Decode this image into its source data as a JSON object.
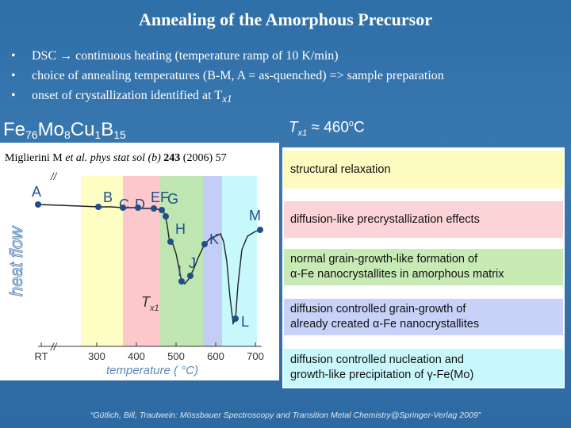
{
  "title": "Annealing of the Amorphous Precursor",
  "bullets": [
    {
      "text": "DSC → continuous heating  (temperature ramp of 10 K/min)"
    },
    {
      "text": "choice of annealing temperatures (B-M, A = as-quenched) => sample preparation"
    },
    {
      "text": "onset of crystallization identified at T",
      "sub": "x1"
    }
  ],
  "bullet_marker": "•",
  "formula": {
    "parts": [
      [
        "Fe",
        "76"
      ],
      [
        "Mo",
        "8"
      ],
      [
        "Cu",
        "1"
      ],
      [
        "B",
        "15"
      ]
    ]
  },
  "tx1_heading": {
    "t": "T",
    "sub": "x1",
    "approx": " ≈ 460",
    "sup": "o",
    "unit": "C"
  },
  "reference": {
    "authors": "Miglierini M ",
    "etal": "et al. phys stat sol (b) ",
    "volume": "243",
    "rest": " (2006) 57"
  },
  "chart": {
    "xlabel": "temperature ( °C)",
    "ylabel": "heat flow",
    "ticks": [
      "RT",
      "300",
      "400",
      "500",
      "600",
      "700"
    ],
    "point_labels": [
      "A",
      "B",
      "C",
      "D",
      "E",
      "F",
      "G",
      "H",
      "I",
      "J",
      "K",
      "L",
      "M"
    ],
    "tx1_label": {
      "t": "T",
      "sub": "x1"
    },
    "break_mark": "//",
    "region_colors": {
      "yellow": "#fdfdc4",
      "pink": "#fcc8cc",
      "green": "#bfe6b0",
      "blue": "#c3cdf5",
      "cyan": "#c6f8fc"
    }
  },
  "notes": [
    {
      "lines": [
        "structural relaxation"
      ],
      "color": "#fdfbc0"
    },
    {
      "lines": [
        "diffusion-like precrystallization effects"
      ],
      "color": "#fcd3d6"
    },
    {
      "lines": [
        "normal grain-growth-like formation of",
        "α-Fe nanocrystallites in amorphous matrix"
      ],
      "color": "#c8eab5"
    },
    {
      "lines": [
        "diffusion controlled grain-growth of",
        "already created α-Fe nanocrystallites"
      ],
      "color": "#c8d1f7"
    },
    {
      "lines": [
        "diffusion controlled nucleation and",
        "growth-like precipitation of γ-Fe(Mo)"
      ],
      "color": "#c9f8fc"
    }
  ],
  "footer": "“Gütlich, Bill, Trautwein: Mössbauer Spectroscopy and Transition Metal Chemistry@Springer-Verlag 2009”"
}
